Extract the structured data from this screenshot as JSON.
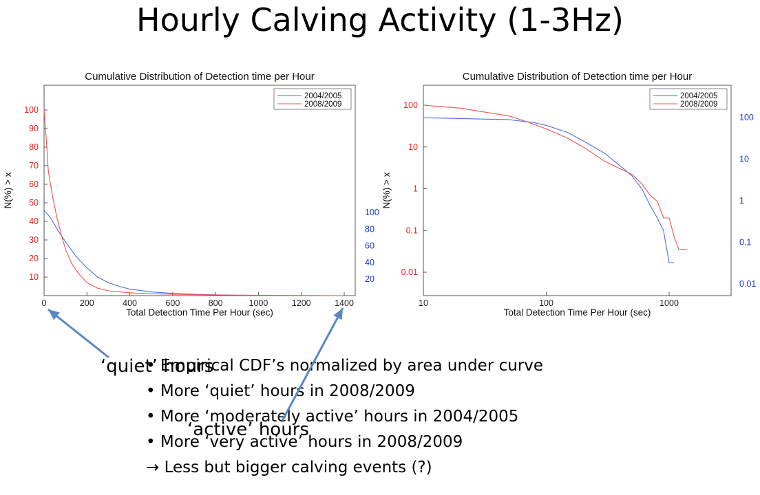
{
  "slide": {
    "title": "Hourly Calving Activity (1-3Hz)",
    "bullets": [
      "• Empirical CDF’s normalized by area under curve",
      "• More ‘quiet’ hours in 2008/2009",
      "• More ‘moderately active’ hours in 2004/2005",
      "• More ‘very active’ hours in 2008/2009",
      "→ Less but bigger calving events (?)"
    ],
    "callouts": {
      "quiet": "‘quiet’ hours",
      "active": "‘active’ hours"
    },
    "colors": {
      "series_2004": "#4a6fe0",
      "series_2008": "#f05050",
      "arrow": "#5b87c5",
      "red_ticks": "#e8231e",
      "blue_ticks": "#1b37d0"
    }
  },
  "chart_data": [
    {
      "type": "line",
      "title": "Cumulative Distribution of Detection time per Hour",
      "xlabel": "Total Detection Time Per Hour (sec)",
      "ylabel": "N(%) > x",
      "xlim": [
        0,
        1400
      ],
      "ylim": [
        0,
        110
      ],
      "xticks": [
        0,
        200,
        400,
        600,
        800,
        1000,
        1200,
        1400
      ],
      "yticks_left": [
        10,
        20,
        30,
        40,
        50,
        60,
        70,
        80,
        90,
        100
      ],
      "yticks_right": [
        20,
        40,
        60,
        80,
        100
      ],
      "legend": "top-right",
      "series": [
        {
          "name": "2004/2005",
          "x": [
            0,
            30,
            60,
            100,
            150,
            200,
            250,
            300,
            350,
            400,
            500,
            600,
            700,
            800,
            900,
            1000,
            1100,
            1400
          ],
          "y": [
            46,
            42,
            36,
            29,
            21,
            15,
            10,
            7,
            5,
            3.5,
            2,
            1.2,
            0.7,
            0.4,
            0.2,
            0.1,
            0.05,
            0
          ]
        },
        {
          "name": "2008/2009",
          "x": [
            0,
            10,
            20,
            40,
            60,
            80,
            100,
            130,
            160,
            200,
            250,
            300,
            400,
            500,
            700,
            1000,
            1400
          ],
          "y": [
            100,
            85,
            67,
            53,
            42,
            33,
            25,
            17,
            12,
            7,
            4,
            2.6,
            1.5,
            1,
            0.5,
            0.2,
            0
          ]
        }
      ]
    },
    {
      "type": "line",
      "title": "Cumulative Distribution of Detection time per Hour",
      "xlabel": "Total Detection Time Per Hour (sec)",
      "ylabel": "N(%) > x",
      "xscale": "log",
      "yscale": "log",
      "xlim": [
        10,
        5000
      ],
      "ylim": [
        0.005,
        200
      ],
      "xticks": [
        10,
        100,
        1000
      ],
      "yticks_left": [
        100,
        10,
        1,
        0.1,
        0.01
      ],
      "yticks_right": [
        100,
        10,
        1,
        0.1,
        0.01
      ],
      "legend": "top-right",
      "series": [
        {
          "name": "2004/2005",
          "x": [
            10,
            20,
            50,
            80,
            100,
            150,
            200,
            300,
            400,
            500,
            600,
            700,
            800,
            900,
            1000,
            1100
          ],
          "y": [
            50,
            48,
            45,
            38,
            33,
            22,
            14,
            7,
            3.5,
            2,
            1,
            0.4,
            0.2,
            0.1,
            0.017,
            0.017
          ]
        },
        {
          "name": "2008/2009",
          "x": [
            10,
            20,
            50,
            70,
            100,
            150,
            200,
            300,
            400,
            500,
            600,
            700,
            800,
            900,
            1000,
            1100,
            1200,
            1400
          ],
          "y": [
            100,
            85,
            55,
            40,
            27,
            16,
            10,
            4.5,
            3,
            2.2,
            1.3,
            0.7,
            0.5,
            0.2,
            0.2,
            0.07,
            0.035,
            0.035
          ]
        }
      ]
    }
  ]
}
